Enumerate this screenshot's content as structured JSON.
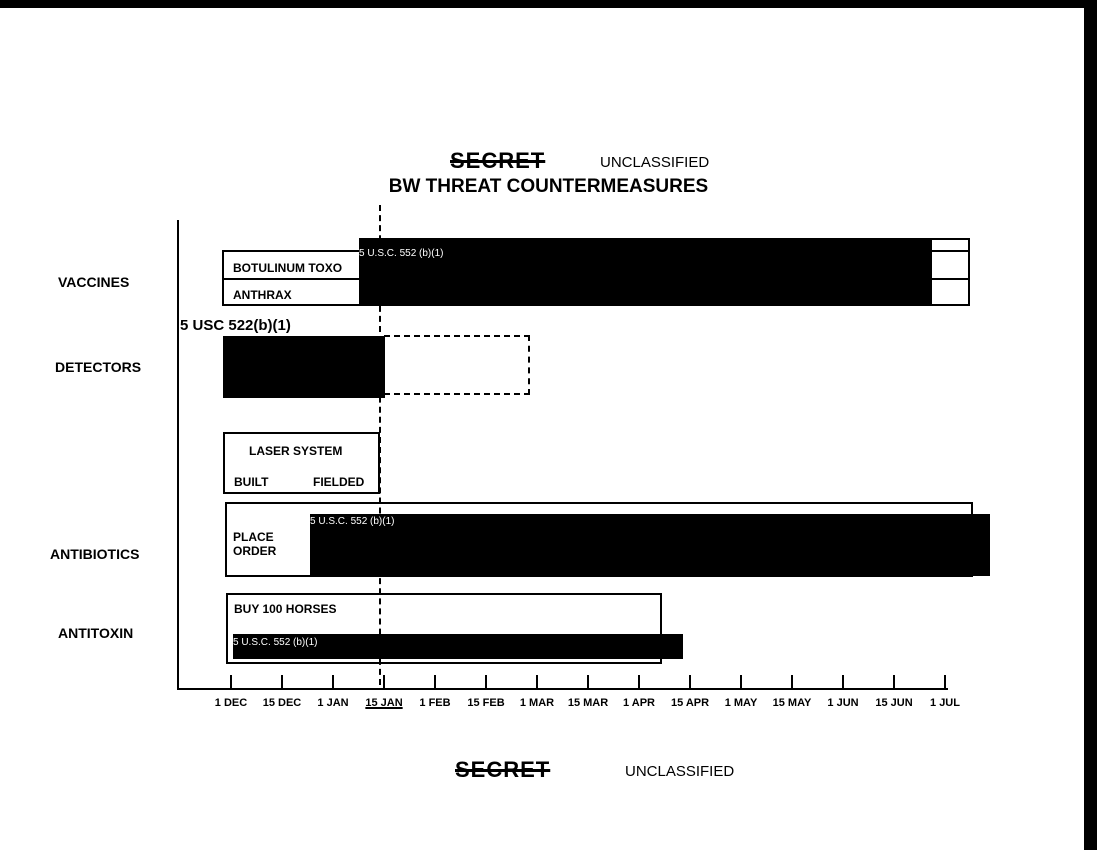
{
  "header": {
    "struck_classification": "SECRET",
    "classification": "UNCLASSIFIED",
    "title": "BW THREAT COUNTERMEASURES"
  },
  "footer": {
    "struck_classification": "SECRET",
    "classification": "UNCLASSIFIED"
  },
  "rows": {
    "vaccines": {
      "label": "VACCINES",
      "items": [
        "BOTULINUM TOXO",
        "ANTHRAX"
      ],
      "redaction": "5 U.S.C. 552 (b)(1)"
    },
    "detectors": {
      "label": "DETECTORS",
      "redaction": "5 USC 522(b)(1)"
    },
    "laser": {
      "title": "LASER SYSTEM",
      "built": "BUILT",
      "fielded": "FIELDED"
    },
    "antibiotics": {
      "label": "ANTIBIOTICS",
      "action": "PLACE ORDER",
      "redaction": "5 U.S.C. 552 (b)(1)"
    },
    "antitoxin": {
      "label": "ANTITOXIN",
      "action": "BUY 100 HORSES",
      "redaction": "5 U.S.C. 552 (b)(1)"
    }
  },
  "timeline": {
    "ticks": [
      "1 DEC",
      "15 DEC",
      "1 JAN",
      "15 JAN",
      "1 FEB",
      "15 FEB",
      "1 MAR",
      "15 MAR",
      "1 APR",
      "15 APR",
      "1 MAY",
      "15 MAY",
      "1 JUN",
      "15 JUN",
      "1 JUL"
    ],
    "current": "15 JAN"
  }
}
